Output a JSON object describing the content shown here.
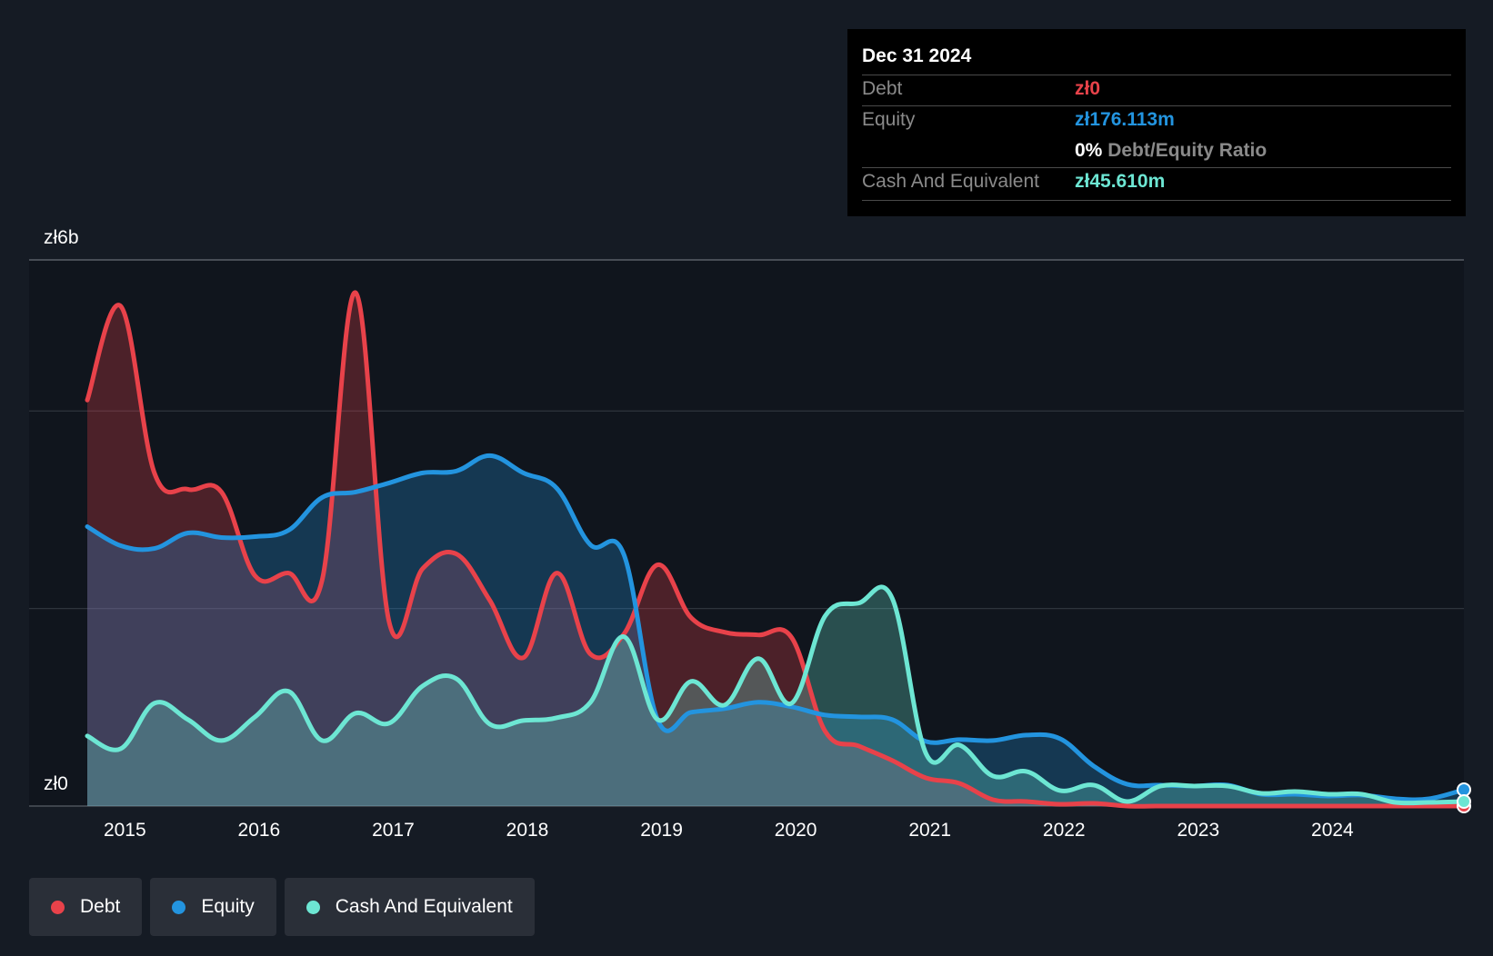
{
  "tooltip": {
    "date": "Dec 31 2024",
    "debt_label": "Debt",
    "debt_value": "zł0",
    "equity_label": "Equity",
    "equity_value": "zł176.113m",
    "ratio_value": "0%",
    "ratio_label": "Debt/Equity Ratio",
    "cash_label": "Cash And Equivalent",
    "cash_value": "zł45.610m"
  },
  "legend": [
    {
      "label": "Debt",
      "color": "#e8424a"
    },
    {
      "label": "Equity",
      "color": "#2394df"
    },
    {
      "label": "Cash And Equivalent",
      "color": "#6de6d3"
    }
  ],
  "colors": {
    "background": "#151b24",
    "debt": "#e8424a",
    "equity": "#2394df",
    "cash": "#6de6d3"
  },
  "chart_data": {
    "type": "area",
    "currency": "zł",
    "unit": "billion",
    "y_tick_labels": [
      "zł6b",
      "zł0"
    ],
    "ylim": [
      0,
      6
    ],
    "y_gridlines": [
      0,
      2.17,
      4.34,
      6
    ],
    "x_tick_labels": [
      "2015",
      "2016",
      "2017",
      "2018",
      "2019",
      "2020",
      "2021",
      "2022",
      "2023",
      "2024"
    ],
    "x_ticks": [
      2015,
      2016,
      2017,
      2018,
      2019,
      2020,
      2021,
      2022,
      2023,
      2024
    ],
    "xlim": [
      2014.72,
      2024.98
    ],
    "highlight_date": "Dec 31 2024",
    "series": [
      {
        "name": "Debt",
        "points": [
          [
            2014.72,
            4.46
          ],
          [
            2014.97,
            5.49
          ],
          [
            2015.22,
            3.66
          ],
          [
            2015.47,
            3.48
          ],
          [
            2015.72,
            3.45
          ],
          [
            2015.97,
            2.53
          ],
          [
            2016.22,
            2.56
          ],
          [
            2016.47,
            2.48
          ],
          [
            2016.72,
            5.64
          ],
          [
            2016.97,
            2.02
          ],
          [
            2017.22,
            2.61
          ],
          [
            2017.47,
            2.77
          ],
          [
            2017.72,
            2.26
          ],
          [
            2017.97,
            1.63
          ],
          [
            2018.22,
            2.56
          ],
          [
            2018.47,
            1.67
          ],
          [
            2018.72,
            1.89
          ],
          [
            2018.97,
            2.65
          ],
          [
            2019.22,
            2.07
          ],
          [
            2019.47,
            1.91
          ],
          [
            2019.72,
            1.88
          ],
          [
            2019.97,
            1.85
          ],
          [
            2020.22,
            0.82
          ],
          [
            2020.47,
            0.66
          ],
          [
            2020.72,
            0.5
          ],
          [
            2020.97,
            0.31
          ],
          [
            2021.22,
            0.25
          ],
          [
            2021.47,
            0.07
          ],
          [
            2021.72,
            0.05
          ],
          [
            2021.97,
            0.02
          ],
          [
            2022.22,
            0.03
          ],
          [
            2022.47,
            0.0
          ],
          [
            2022.72,
            0.0
          ],
          [
            2022.97,
            0.0
          ],
          [
            2023.22,
            0.0
          ],
          [
            2023.47,
            0.0
          ],
          [
            2023.72,
            0.0
          ],
          [
            2023.97,
            0.0
          ],
          [
            2024.22,
            0.0
          ],
          [
            2024.47,
            0.0
          ],
          [
            2024.72,
            0.0
          ],
          [
            2024.98,
            0.0
          ]
        ]
      },
      {
        "name": "Equity",
        "points": [
          [
            2014.72,
            3.07
          ],
          [
            2014.97,
            2.86
          ],
          [
            2015.22,
            2.83
          ],
          [
            2015.47,
            3.0
          ],
          [
            2015.72,
            2.95
          ],
          [
            2015.97,
            2.96
          ],
          [
            2016.22,
            3.03
          ],
          [
            2016.47,
            3.39
          ],
          [
            2016.72,
            3.45
          ],
          [
            2016.97,
            3.55
          ],
          [
            2017.22,
            3.66
          ],
          [
            2017.47,
            3.68
          ],
          [
            2017.72,
            3.85
          ],
          [
            2017.97,
            3.66
          ],
          [
            2018.22,
            3.49
          ],
          [
            2018.47,
            2.87
          ],
          [
            2018.72,
            2.76
          ],
          [
            2018.97,
            0.95
          ],
          [
            2019.22,
            1.03
          ],
          [
            2019.47,
            1.07
          ],
          [
            2019.72,
            1.14
          ],
          [
            2019.97,
            1.09
          ],
          [
            2020.22,
            1.0
          ],
          [
            2020.47,
            0.98
          ],
          [
            2020.72,
            0.95
          ],
          [
            2020.97,
            0.71
          ],
          [
            2021.22,
            0.73
          ],
          [
            2021.47,
            0.72
          ],
          [
            2021.72,
            0.78
          ],
          [
            2021.97,
            0.74
          ],
          [
            2022.22,
            0.44
          ],
          [
            2022.47,
            0.24
          ],
          [
            2022.72,
            0.23
          ],
          [
            2022.97,
            0.22
          ],
          [
            2023.22,
            0.23
          ],
          [
            2023.47,
            0.13
          ],
          [
            2023.72,
            0.13
          ],
          [
            2023.97,
            0.11
          ],
          [
            2024.22,
            0.12
          ],
          [
            2024.47,
            0.08
          ],
          [
            2024.72,
            0.08
          ],
          [
            2024.98,
            0.18
          ]
        ]
      },
      {
        "name": "Cash And Equivalent",
        "points": [
          [
            2014.72,
            0.77
          ],
          [
            2014.97,
            0.63
          ],
          [
            2015.22,
            1.13
          ],
          [
            2015.47,
            0.95
          ],
          [
            2015.72,
            0.72
          ],
          [
            2015.97,
            0.98
          ],
          [
            2016.22,
            1.26
          ],
          [
            2016.47,
            0.72
          ],
          [
            2016.72,
            1.02
          ],
          [
            2016.97,
            0.91
          ],
          [
            2017.22,
            1.32
          ],
          [
            2017.47,
            1.4
          ],
          [
            2017.72,
            0.9
          ],
          [
            2017.97,
            0.94
          ],
          [
            2018.22,
            0.97
          ],
          [
            2018.47,
            1.14
          ],
          [
            2018.72,
            1.86
          ],
          [
            2018.97,
            0.95
          ],
          [
            2019.22,
            1.37
          ],
          [
            2019.47,
            1.11
          ],
          [
            2019.72,
            1.62
          ],
          [
            2019.97,
            1.13
          ],
          [
            2020.22,
            2.09
          ],
          [
            2020.47,
            2.23
          ],
          [
            2020.72,
            2.28
          ],
          [
            2020.97,
            0.58
          ],
          [
            2021.22,
            0.67
          ],
          [
            2021.47,
            0.33
          ],
          [
            2021.72,
            0.38
          ],
          [
            2021.97,
            0.17
          ],
          [
            2022.22,
            0.23
          ],
          [
            2022.47,
            0.05
          ],
          [
            2022.72,
            0.22
          ],
          [
            2022.97,
            0.22
          ],
          [
            2023.22,
            0.22
          ],
          [
            2023.47,
            0.14
          ],
          [
            2023.72,
            0.16
          ],
          [
            2023.97,
            0.13
          ],
          [
            2024.22,
            0.13
          ],
          [
            2024.47,
            0.04
          ],
          [
            2024.72,
            0.04
          ],
          [
            2024.98,
            0.05
          ]
        ]
      }
    ]
  }
}
